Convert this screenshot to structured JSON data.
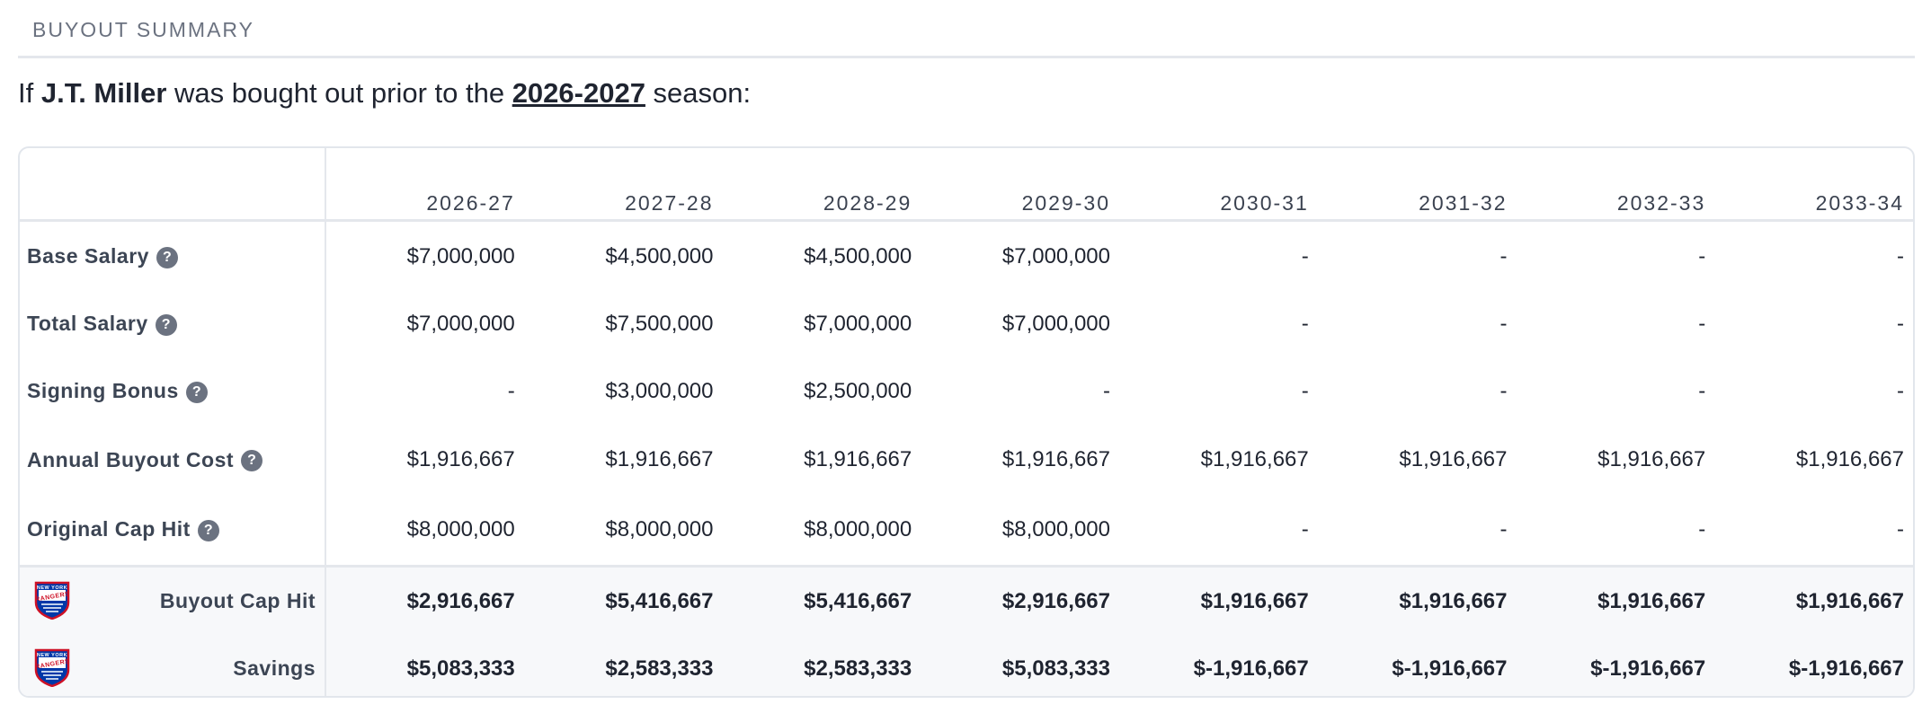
{
  "header": {
    "title": "BUYOUT SUMMARY"
  },
  "intro": {
    "prefix": "If ",
    "player": "J.T. Miller",
    "middle": " was bought out prior to the ",
    "season": "2026-2027",
    "suffix": " season:"
  },
  "help_icon": "question-circle-icon",
  "team_logo": "new-york-rangers-logo",
  "team_logo_text": [
    "NEW YORK",
    "RANGERS"
  ],
  "years": [
    "2026-27",
    "2027-28",
    "2028-29",
    "2029-30",
    "2030-31",
    "2031-32",
    "2032-33",
    "2033-34"
  ],
  "rows": [
    {
      "label": "Base Salary",
      "values": [
        "$7,000,000",
        "$4,500,000",
        "$4,500,000",
        "$7,000,000",
        "-",
        "-",
        "-",
        "-"
      ]
    },
    {
      "label": "Total Salary",
      "values": [
        "$7,000,000",
        "$7,500,000",
        "$7,000,000",
        "$7,000,000",
        "-",
        "-",
        "-",
        "-"
      ]
    },
    {
      "label": "Signing Bonus",
      "values": [
        "-",
        "$3,000,000",
        "$2,500,000",
        "-",
        "-",
        "-",
        "-",
        "-"
      ]
    },
    {
      "label": "Annual Buyout Cost",
      "values": [
        "$1,916,667",
        "$1,916,667",
        "$1,916,667",
        "$1,916,667",
        "$1,916,667",
        "$1,916,667",
        "$1,916,667",
        "$1,916,667"
      ]
    },
    {
      "label": "Original Cap Hit",
      "values": [
        "$8,000,000",
        "$8,000,000",
        "$8,000,000",
        "$8,000,000",
        "-",
        "-",
        "-",
        "-"
      ]
    }
  ],
  "summary_rows": [
    {
      "label": "Buyout Cap Hit",
      "values": [
        "$2,916,667",
        "$5,416,667",
        "$5,416,667",
        "$2,916,667",
        "$1,916,667",
        "$1,916,667",
        "$1,916,667",
        "$1,916,667"
      ]
    },
    {
      "label": "Savings",
      "values": [
        "$5,083,333",
        "$2,583,333",
        "$2,583,333",
        "$5,083,333",
        "$-1,916,667",
        "$-1,916,667",
        "$-1,916,667",
        "$-1,916,667"
      ]
    }
  ],
  "colors": {
    "rangers_blue": "#0038a8",
    "rangers_red": "#ce1126",
    "help_grey": "#6b7280"
  }
}
